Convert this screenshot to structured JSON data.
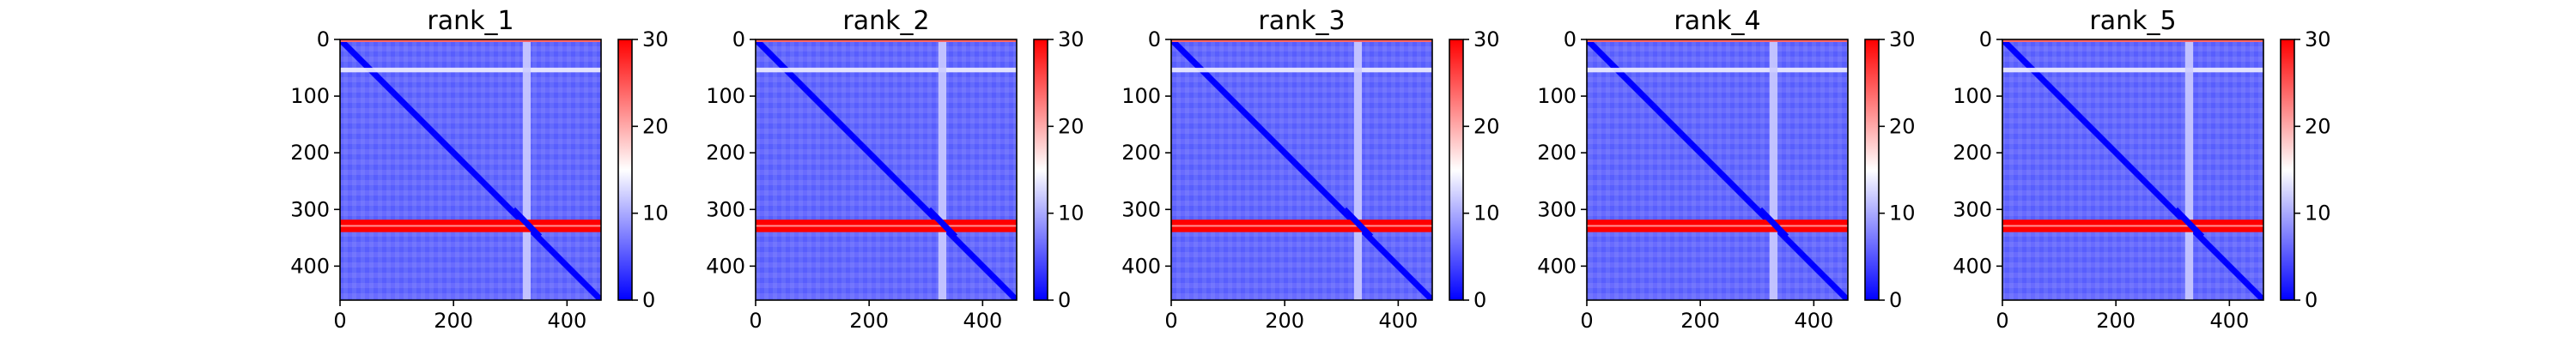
{
  "chart_data": {
    "type": "heatmap",
    "colormap": {
      "name": "bwr",
      "min": 0,
      "max": 30,
      "colors": [
        "#0000ff",
        "#ffffff",
        "#ff0000"
      ],
      "ticks": [
        0,
        10,
        20,
        30
      ],
      "tick_labels": [
        "0",
        "10",
        "20",
        "30"
      ]
    },
    "shared_axes": {
      "xlim": [
        0,
        460
      ],
      "ylim": [
        460,
        0
      ],
      "x_ticks": [
        0,
        200,
        400
      ],
      "x_tick_labels": [
        "0",
        "200",
        "400"
      ],
      "y_ticks": [
        0,
        100,
        200,
        300,
        400
      ],
      "y_tick_labels": [
        "0",
        "100",
        "200",
        "300",
        "400"
      ],
      "grid": false
    },
    "matrix_size": 460,
    "description_features": {
      "diagonal_value": 0,
      "background_value_range": [
        3,
        8
      ],
      "high_row_band": {
        "rows": [
          318,
          340
        ],
        "value": 30
      },
      "near_row_band": {
        "rows": [
          50,
          58
        ],
        "value": 14
      },
      "vertical_band": {
        "cols": [
          322,
          336
        ],
        "value": 12
      }
    },
    "panels": [
      {
        "title": "rank_1"
      },
      {
        "title": "rank_2"
      },
      {
        "title": "rank_3"
      },
      {
        "title": "rank_4"
      },
      {
        "title": "rank_5"
      }
    ]
  }
}
